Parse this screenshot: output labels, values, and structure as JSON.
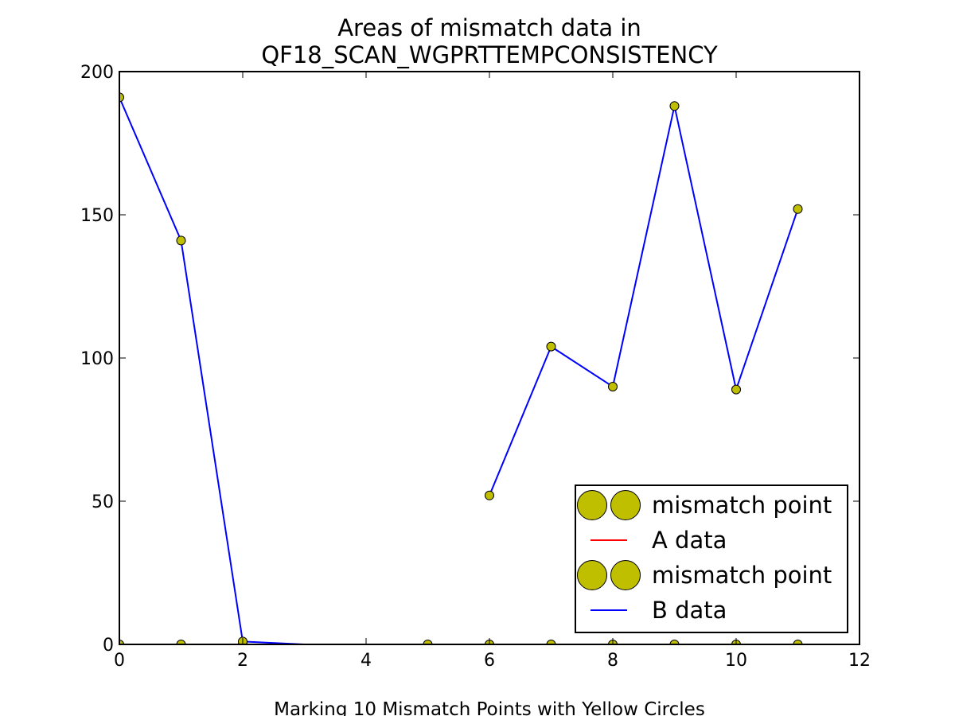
{
  "chart_data": {
    "type": "line",
    "title_line1": "Areas of mismatch data in",
    "title_line2": "QF18_SCAN_WGPRTTEMPCONSISTENCY",
    "xlabel": "Marking 10 Mismatch Points with Yellow Circles",
    "ylabel": "",
    "xlim": [
      0,
      12
    ],
    "ylim": [
      0,
      200
    ],
    "xticks": [
      0,
      2,
      4,
      6,
      8,
      10,
      12
    ],
    "yticks": [
      0,
      50,
      100,
      150,
      200
    ],
    "grid": false,
    "legend_position": "lower-right",
    "colors": {
      "a_line": "#ff0000",
      "b_line": "#0000ff",
      "marker_fill": "#bfbf00",
      "marker_edge": "#000000"
    },
    "series": [
      {
        "name": "mismatch point",
        "kind": "marker",
        "points": [
          [
            0,
            0
          ],
          [
            1,
            0
          ],
          [
            2,
            0
          ],
          [
            5,
            0
          ],
          [
            6,
            0
          ],
          [
            7,
            0
          ],
          [
            8,
            0
          ],
          [
            9,
            0
          ],
          [
            10,
            0
          ],
          [
            11,
            0
          ]
        ]
      },
      {
        "name": "A data",
        "kind": "line",
        "segments": [
          [
            [
              0,
              0
            ],
            [
              1,
              0
            ],
            [
              2,
              0
            ],
            [
              3,
              0
            ],
            [
              4,
              0
            ],
            [
              5,
              0
            ],
            [
              6,
              0
            ],
            [
              7,
              0
            ],
            [
              8,
              0
            ],
            [
              9,
              0
            ],
            [
              10,
              0
            ],
            [
              11,
              0
            ]
          ]
        ]
      },
      {
        "name": "mismatch point",
        "kind": "marker",
        "points": [
          [
            0,
            191
          ],
          [
            1,
            141
          ],
          [
            2,
            1
          ],
          [
            6,
            52
          ],
          [
            7,
            104
          ],
          [
            8,
            90
          ],
          [
            9,
            188
          ],
          [
            10,
            89
          ],
          [
            11,
            152
          ]
        ]
      },
      {
        "name": "B data",
        "kind": "line",
        "segments": [
          [
            [
              0,
              191
            ],
            [
              1,
              141
            ],
            [
              2,
              1
            ],
            [
              3,
              0
            ],
            [
              4,
              0
            ],
            [
              5,
              0
            ]
          ],
          [
            [
              6,
              52
            ],
            [
              7,
              104
            ],
            [
              8,
              90
            ],
            [
              9,
              188
            ],
            [
              10,
              89
            ],
            [
              11,
              152
            ]
          ]
        ]
      }
    ]
  }
}
